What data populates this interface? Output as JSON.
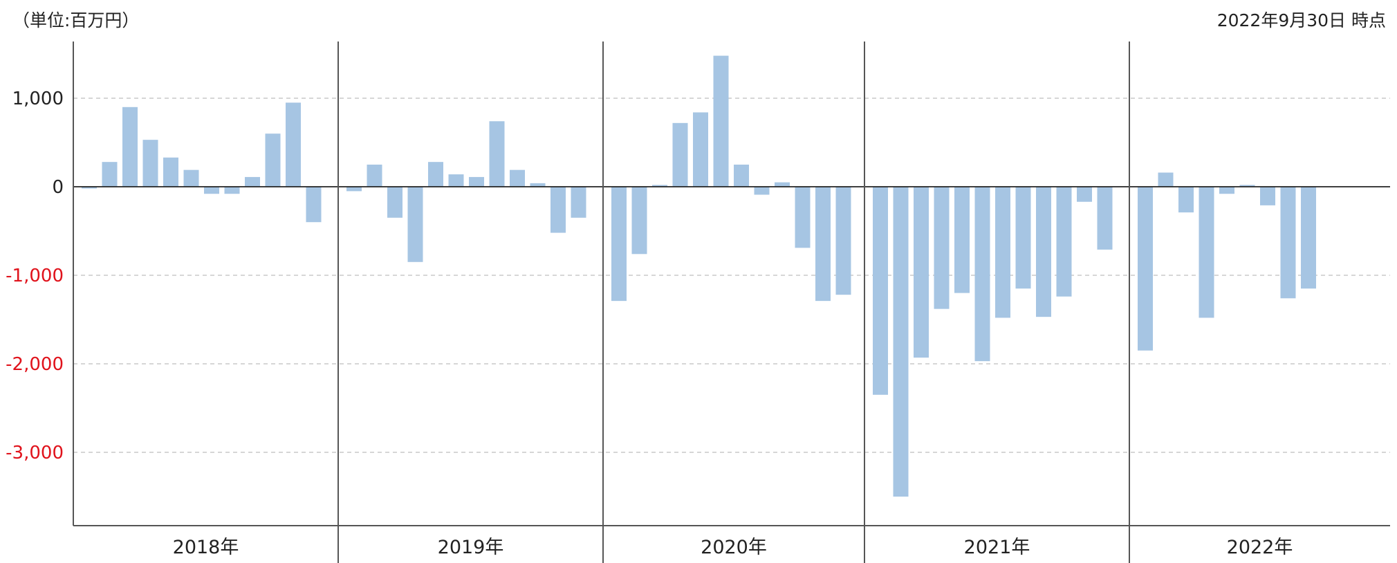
{
  "header": {
    "unit_label": "（単位:百万円）",
    "as_of_label": "2022年9月30日 時点"
  },
  "colors": {
    "bar": "#a6c5e3",
    "positive_tick": "#222222",
    "negative_tick": "#e0121b",
    "grid": "#c8c8c8",
    "axis": "#555555"
  },
  "chart_data": {
    "type": "bar",
    "title": "",
    "xlabel": "",
    "ylabel": "",
    "ylim": [
      -3800,
      1600
    ],
    "yticks": [
      1000,
      0,
      -1000,
      -2000,
      -3000
    ],
    "ytick_labels": [
      "1,000",
      "0",
      "-1,000",
      "-2,000",
      "-3,000"
    ],
    "grid": true,
    "groups": [
      {
        "label": "2018年",
        "values": [
          -20,
          280,
          900,
          530,
          330,
          190,
          -80,
          -80,
          110,
          600,
          950,
          -400
        ]
      },
      {
        "label": "2019年",
        "values": [
          -50,
          250,
          -350,
          -850,
          280,
          140,
          110,
          740,
          190,
          40,
          -520,
          -350
        ]
      },
      {
        "label": "2020年",
        "values": [
          -1290,
          -760,
          20,
          720,
          840,
          1480,
          250,
          -90,
          50,
          -690,
          -1290,
          -1220
        ]
      },
      {
        "label": "2021年",
        "values": [
          -2350,
          -3500,
          -1930,
          -1380,
          -1200,
          -1970,
          -1480,
          -1150,
          -1470,
          -1240,
          -170,
          -710
        ]
      },
      {
        "label": "2022年",
        "values": [
          -1850,
          160,
          -290,
          -1480,
          -80,
          20,
          -210,
          -1260,
          -1150
        ]
      }
    ]
  }
}
